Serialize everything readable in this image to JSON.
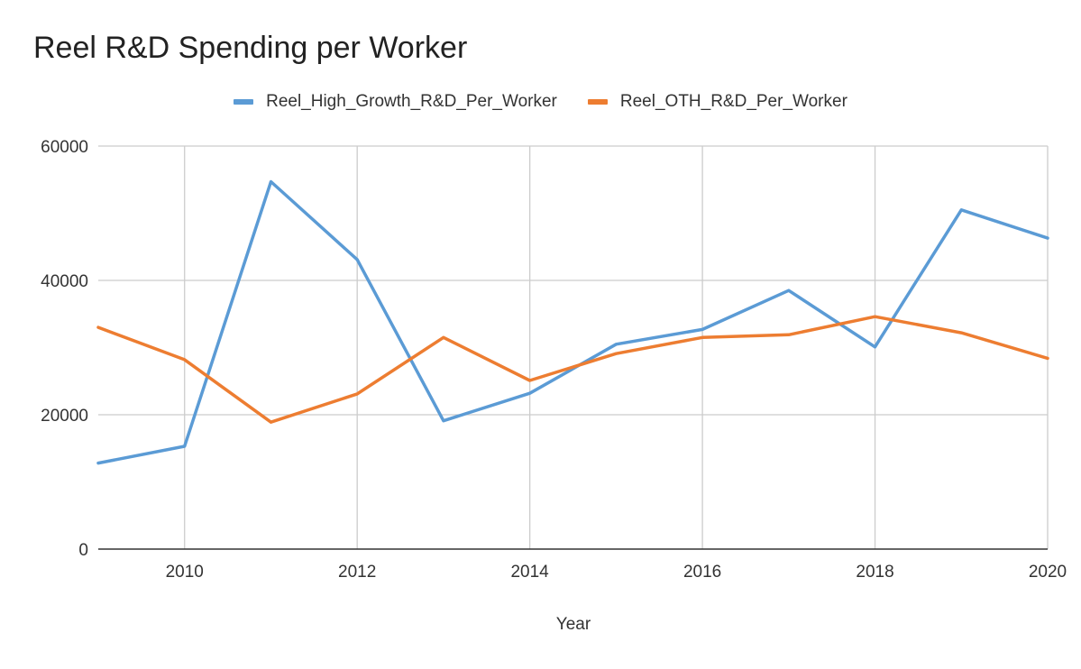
{
  "chart_data": {
    "type": "line",
    "title": "Reel R&D Spending per Worker",
    "xlabel": "Year",
    "ylabel": "",
    "x": [
      2009,
      2010,
      2011,
      2012,
      2013,
      2014,
      2015,
      2016,
      2017,
      2018,
      2019,
      2020
    ],
    "xlim": [
      2009,
      2020
    ],
    "ylim": [
      0,
      60000
    ],
    "x_ticks": [
      2010,
      2012,
      2014,
      2016,
      2018,
      2020
    ],
    "y_ticks": [
      0,
      20000,
      40000,
      60000
    ],
    "grid": true,
    "legend_position": "top",
    "series": [
      {
        "name": "Reel_High_Growth_R&D_Per_Worker",
        "color": "#5b9bd5",
        "values": [
          12800,
          15300,
          54700,
          43100,
          19100,
          23200,
          30500,
          32700,
          38500,
          30100,
          50500,
          46300
        ]
      },
      {
        "name": "Reel_OTH_R&D_Per_Worker",
        "color": "#ed7d31",
        "values": [
          33000,
          28200,
          18900,
          23100,
          31500,
          25100,
          29100,
          31500,
          31900,
          34600,
          32200,
          28400
        ]
      }
    ]
  }
}
